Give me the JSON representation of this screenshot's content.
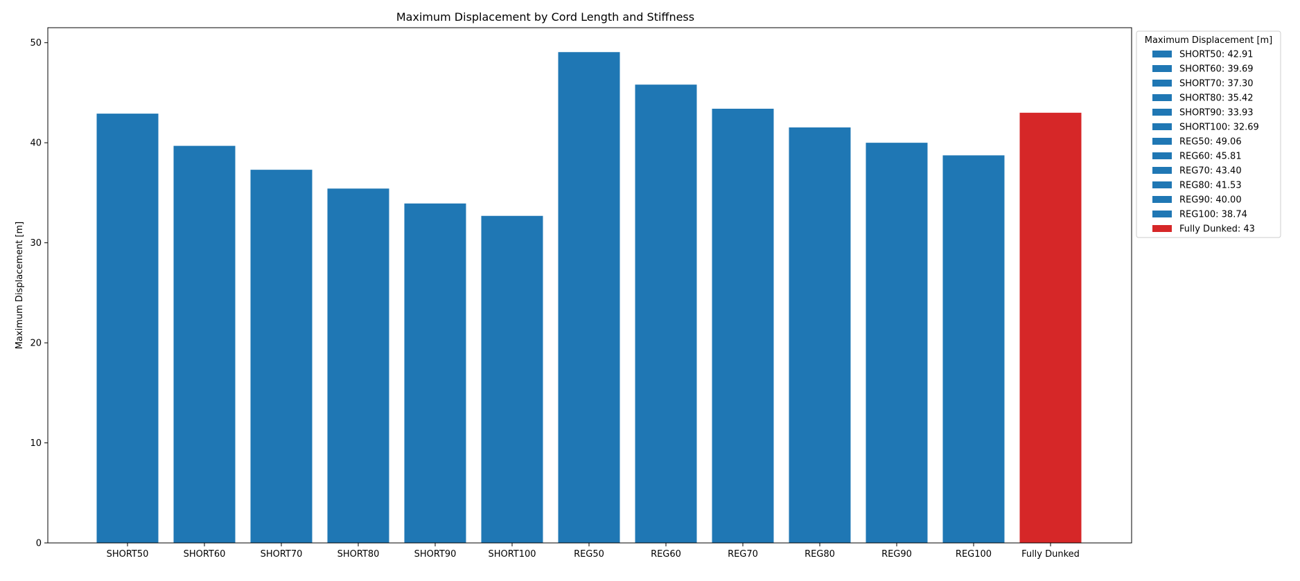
{
  "chart_data": {
    "type": "bar",
    "title": "Maximum Displacement by Cord Length and Stiffness",
    "xlabel": "",
    "ylabel": "Maximum Displacement [m]",
    "ylim": [
      0,
      51.5
    ],
    "yticks": [
      0,
      10,
      20,
      30,
      40,
      50
    ],
    "categories": [
      "SHORT50",
      "SHORT60",
      "SHORT70",
      "SHORT80",
      "SHORT90",
      "SHORT100",
      "REG50",
      "REG60",
      "REG70",
      "REG80",
      "REG90",
      "REG100",
      "Fully Dunked"
    ],
    "values": [
      42.91,
      39.69,
      37.3,
      35.42,
      33.93,
      32.69,
      49.06,
      45.81,
      43.4,
      41.53,
      40.0,
      38.74,
      43
    ],
    "colors": [
      "#1f77b4",
      "#1f77b4",
      "#1f77b4",
      "#1f77b4",
      "#1f77b4",
      "#1f77b4",
      "#1f77b4",
      "#1f77b4",
      "#1f77b4",
      "#1f77b4",
      "#1f77b4",
      "#1f77b4",
      "#d62728"
    ],
    "grid": false,
    "legend": {
      "title": "Maximum Displacement [m]",
      "placement": "outside-top-right",
      "entries": [
        "SHORT50: 42.91",
        "SHORT60: 39.69",
        "SHORT70: 37.30",
        "SHORT80: 35.42",
        "SHORT90: 33.93",
        "SHORT100: 32.69",
        "REG50: 49.06",
        "REG60: 45.81",
        "REG70: 43.40",
        "REG80: 41.53",
        "REG90: 40.00",
        "REG100: 38.74",
        "Fully Dunked: 43"
      ]
    }
  }
}
